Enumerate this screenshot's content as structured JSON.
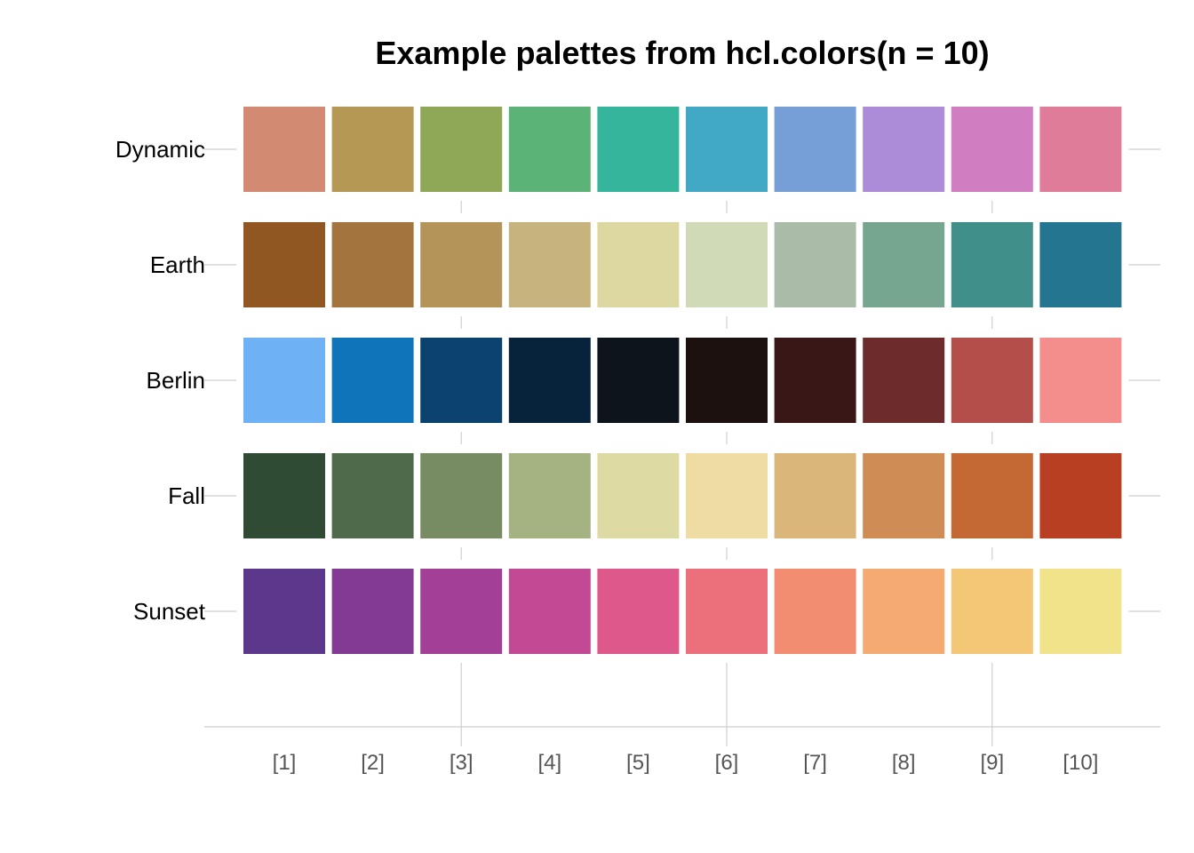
{
  "chart_data": {
    "type": "heatmap",
    "title": "Example palettes from hcl.colors(n = 10)",
    "x_ticks": [
      "[1]",
      "[2]",
      "[3]",
      "[4]",
      "[5]",
      "[6]",
      "[7]",
      "[8]",
      "[9]",
      "[10]"
    ],
    "series": [
      {
        "name": "Dynamic",
        "colors": [
          "#D28A73",
          "#B59854",
          "#8EA858",
          "#5CB378",
          "#35B59C",
          "#41A9C4",
          "#769FD7",
          "#AC8BD8",
          "#D07DC2",
          "#DE7C99"
        ]
      },
      {
        "name": "Earth",
        "colors": [
          "#905722",
          "#A3743D",
          "#B49459",
          "#C7B37D",
          "#DDD7A2",
          "#D0DAB6",
          "#AABCA8",
          "#77A690",
          "#418F8B",
          "#237590"
        ]
      },
      {
        "name": "Berlin",
        "colors": [
          "#6EB1F4",
          "#0F74BA",
          "#0B436E",
          "#06233B",
          "#0D141C",
          "#1C110E",
          "#3A1717",
          "#6D2C2B",
          "#B44E4B",
          "#F48E8C"
        ]
      },
      {
        "name": "Fall",
        "colors": [
          "#2F4B33",
          "#4F6A4B",
          "#788C63",
          "#A5B282",
          "#DDDAA4",
          "#EEDCA2",
          "#DBB67A",
          "#CF8C54",
          "#C46834",
          "#B93F22"
        ]
      },
      {
        "name": "Sunset",
        "colors": [
          "#5C378C",
          "#823A95",
          "#A43F98",
          "#C44994",
          "#DE588B",
          "#EC6F7C",
          "#F38D72",
          "#F5AA71",
          "#F3C776",
          "#F0E389"
        ]
      }
    ],
    "grid": true
  }
}
